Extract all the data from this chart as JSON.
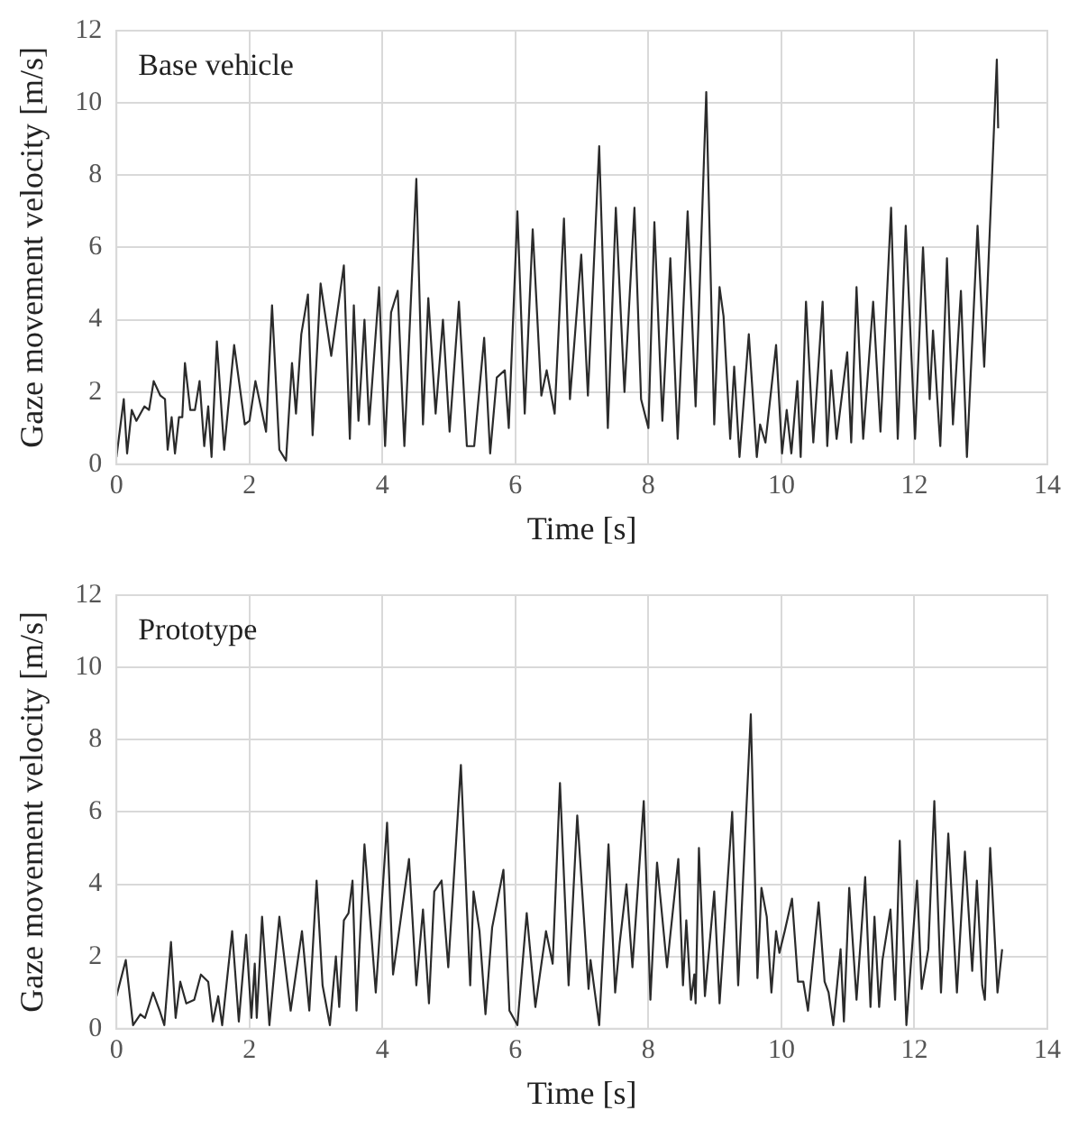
{
  "chart_data": [
    {
      "type": "line",
      "title": "Base vehicle",
      "xlabel": "Time [s]",
      "ylabel": "Gaze movement velocity [m/s]",
      "color": "#2b2b2b",
      "xlim": [
        0,
        14
      ],
      "ylim": [
        0,
        12
      ],
      "xticks": [
        0,
        2,
        4,
        6,
        8,
        10,
        12,
        14
      ],
      "yticks": [
        0,
        2,
        4,
        6,
        8,
        10,
        12
      ],
      "grid": true,
      "x": [
        0,
        0.11,
        0.16,
        0.23,
        0.3,
        0.42,
        0.49,
        0.56,
        0.66,
        0.73,
        0.77,
        0.83,
        0.88,
        0.94,
        0.99,
        1.03,
        1.11,
        1.18,
        1.25,
        1.32,
        1.38,
        1.43,
        1.51,
        1.62,
        1.77,
        1.93,
        2.0,
        2.09,
        2.25,
        2.34,
        2.45,
        2.55,
        2.64,
        2.7,
        2.78,
        2.88,
        2.95,
        3.07,
        3.23,
        3.42,
        3.51,
        3.57,
        3.64,
        3.73,
        3.8,
        3.95,
        4.04,
        4.13,
        4.23,
        4.33,
        4.51,
        4.61,
        4.69,
        4.8,
        4.91,
        5.01,
        5.15,
        5.27,
        5.38,
        5.53,
        5.62,
        5.72,
        5.84,
        5.9,
        6.03,
        6.14,
        6.26,
        6.39,
        6.47,
        6.59,
        6.73,
        6.82,
        6.99,
        7.09,
        7.26,
        7.39,
        7.51,
        7.64,
        7.79,
        7.89,
        8.0,
        8.09,
        8.21,
        8.33,
        8.44,
        8.59,
        8.71,
        8.87,
        8.99,
        9.07,
        9.13,
        9.23,
        9.29,
        9.37,
        9.51,
        9.63,
        9.68,
        9.76,
        9.92,
        10.01,
        10.08,
        10.15,
        10.24,
        10.29,
        10.37,
        10.48,
        10.62,
        10.69,
        10.75,
        10.83,
        10.99,
        11.05,
        11.13,
        11.23,
        11.38,
        11.49,
        11.65,
        11.75,
        11.87,
        12.01,
        12.13,
        12.23,
        12.28,
        12.39,
        12.49,
        12.58,
        12.7,
        12.79,
        12.95,
        13.05,
        13.24,
        13.26
      ],
      "values": [
        0.2,
        1.8,
        0.3,
        1.5,
        1.2,
        1.6,
        1.5,
        2.3,
        1.9,
        1.8,
        0.4,
        1.3,
        0.3,
        1.3,
        1.3,
        2.8,
        1.5,
        1.5,
        2.3,
        0.5,
        1.6,
        0.2,
        3.4,
        0.4,
        3.3,
        1.1,
        1.2,
        2.3,
        0.9,
        4.4,
        0.4,
        0.1,
        2.8,
        1.4,
        3.6,
        4.7,
        0.8,
        5.0,
        3.0,
        5.5,
        0.7,
        4.4,
        1.2,
        4.0,
        1.1,
        4.9,
        0.5,
        4.2,
        4.8,
        0.5,
        7.9,
        1.1,
        4.6,
        1.4,
        4.0,
        0.9,
        4.5,
        0.5,
        0.5,
        3.5,
        0.3,
        2.4,
        2.6,
        1.0,
        7.0,
        1.4,
        6.5,
        1.9,
        2.6,
        1.4,
        6.8,
        1.8,
        5.8,
        1.9,
        8.8,
        1.0,
        7.1,
        2.0,
        7.1,
        1.8,
        1.0,
        6.7,
        1.2,
        5.7,
        0.7,
        7.0,
        1.6,
        10.3,
        1.1,
        4.9,
        4.1,
        0.7,
        2.7,
        0.2,
        3.6,
        0.2,
        1.1,
        0.6,
        3.3,
        0.3,
        1.5,
        0.3,
        2.3,
        0.2,
        4.5,
        0.6,
        4.5,
        0.5,
        2.6,
        0.7,
        3.1,
        0.6,
        4.9,
        0.7,
        4.5,
        0.9,
        7.1,
        0.7,
        6.6,
        0.7,
        6.0,
        1.8,
        3.7,
        0.5,
        5.7,
        1.1,
        4.8,
        0.2,
        6.6,
        2.7,
        11.2,
        9.3
      ]
    },
    {
      "type": "line",
      "title": "Prototype",
      "xlabel": "Time [s]",
      "ylabel": "Gaze movement velocity [m/s]",
      "color": "#2b2b2b",
      "xlim": [
        0,
        14
      ],
      "ylim": [
        0,
        12
      ],
      "xticks": [
        0,
        2,
        4,
        6,
        8,
        10,
        12,
        14
      ],
      "yticks": [
        0,
        2,
        4,
        6,
        8,
        10,
        12
      ],
      "grid": true,
      "x": [
        0,
        0.14,
        0.25,
        0.36,
        0.43,
        0.55,
        0.65,
        0.72,
        0.82,
        0.89,
        0.96,
        1.05,
        1.17,
        1.27,
        1.38,
        1.45,
        1.53,
        1.59,
        1.74,
        1.84,
        1.95,
        2.03,
        2.08,
        2.11,
        2.19,
        2.3,
        2.45,
        2.62,
        2.79,
        2.9,
        3.01,
        3.1,
        3.21,
        3.3,
        3.35,
        3.42,
        3.49,
        3.55,
        3.61,
        3.73,
        3.9,
        4.07,
        4.16,
        4.4,
        4.51,
        4.61,
        4.7,
        4.78,
        4.89,
        4.99,
        5.18,
        5.32,
        5.37,
        5.46,
        5.55,
        5.65,
        5.82,
        5.91,
        6.03,
        6.17,
        6.3,
        6.46,
        6.56,
        6.67,
        6.8,
        6.93,
        7.1,
        7.13,
        7.26,
        7.4,
        7.5,
        7.57,
        7.67,
        7.76,
        7.93,
        8.03,
        8.13,
        8.28,
        8.33,
        8.45,
        8.52,
        8.57,
        8.64,
        8.69,
        8.71,
        8.76,
        8.85,
        8.99,
        9.07,
        9.26,
        9.35,
        9.54,
        9.64,
        9.7,
        9.78,
        9.85,
        9.92,
        9.97,
        10.05,
        10.16,
        10.25,
        10.33,
        10.4,
        10.56,
        10.65,
        10.71,
        10.78,
        10.89,
        10.94,
        11.02,
        11.13,
        11.26,
        11.34,
        11.4,
        11.47,
        11.52,
        11.64,
        11.71,
        11.78,
        11.88,
        12.04,
        12.11,
        12.21,
        12.3,
        12.4,
        12.51,
        12.64,
        12.76,
        12.87,
        12.94,
        13.02,
        13.06,
        13.14,
        13.25,
        13.32
      ],
      "values": [
        0.9,
        1.9,
        0.1,
        0.4,
        0.3,
        1.0,
        0.5,
        0.1,
        2.4,
        0.3,
        1.3,
        0.7,
        0.8,
        1.5,
        1.3,
        0.2,
        0.9,
        0.1,
        2.7,
        0.2,
        2.6,
        0.3,
        1.8,
        0.3,
        3.1,
        0.1,
        3.1,
        0.5,
        2.7,
        0.5,
        4.1,
        1.2,
        0.1,
        2.0,
        0.6,
        3.0,
        3.2,
        4.1,
        0.5,
        5.1,
        1.0,
        5.7,
        1.5,
        4.7,
        1.2,
        3.3,
        0.7,
        3.8,
        4.1,
        1.7,
        7.3,
        1.2,
        3.8,
        2.7,
        0.4,
        2.8,
        4.4,
        0.5,
        0.1,
        3.2,
        0.6,
        2.7,
        1.8,
        6.8,
        1.2,
        5.9,
        1.1,
        1.9,
        0.1,
        5.1,
        1.0,
        2.4,
        4.0,
        1.7,
        6.3,
        0.8,
        4.6,
        1.7,
        2.6,
        4.7,
        1.2,
        3.0,
        0.8,
        1.5,
        0.7,
        5.0,
        0.9,
        3.8,
        0.7,
        6.0,
        1.2,
        8.7,
        1.4,
        3.9,
        3.1,
        1.0,
        2.7,
        2.1,
        2.7,
        3.6,
        1.3,
        1.3,
        0.5,
        3.5,
        1.3,
        1.0,
        0.1,
        2.2,
        0.2,
        3.9,
        0.8,
        4.2,
        0.6,
        3.1,
        0.6,
        1.9,
        3.3,
        0.8,
        5.2,
        0.1,
        4.1,
        1.1,
        2.2,
        6.3,
        1.0,
        5.4,
        1.0,
        4.9,
        1.6,
        4.1,
        1.2,
        0.8,
        5.0,
        1.0,
        2.2
      ]
    }
  ]
}
